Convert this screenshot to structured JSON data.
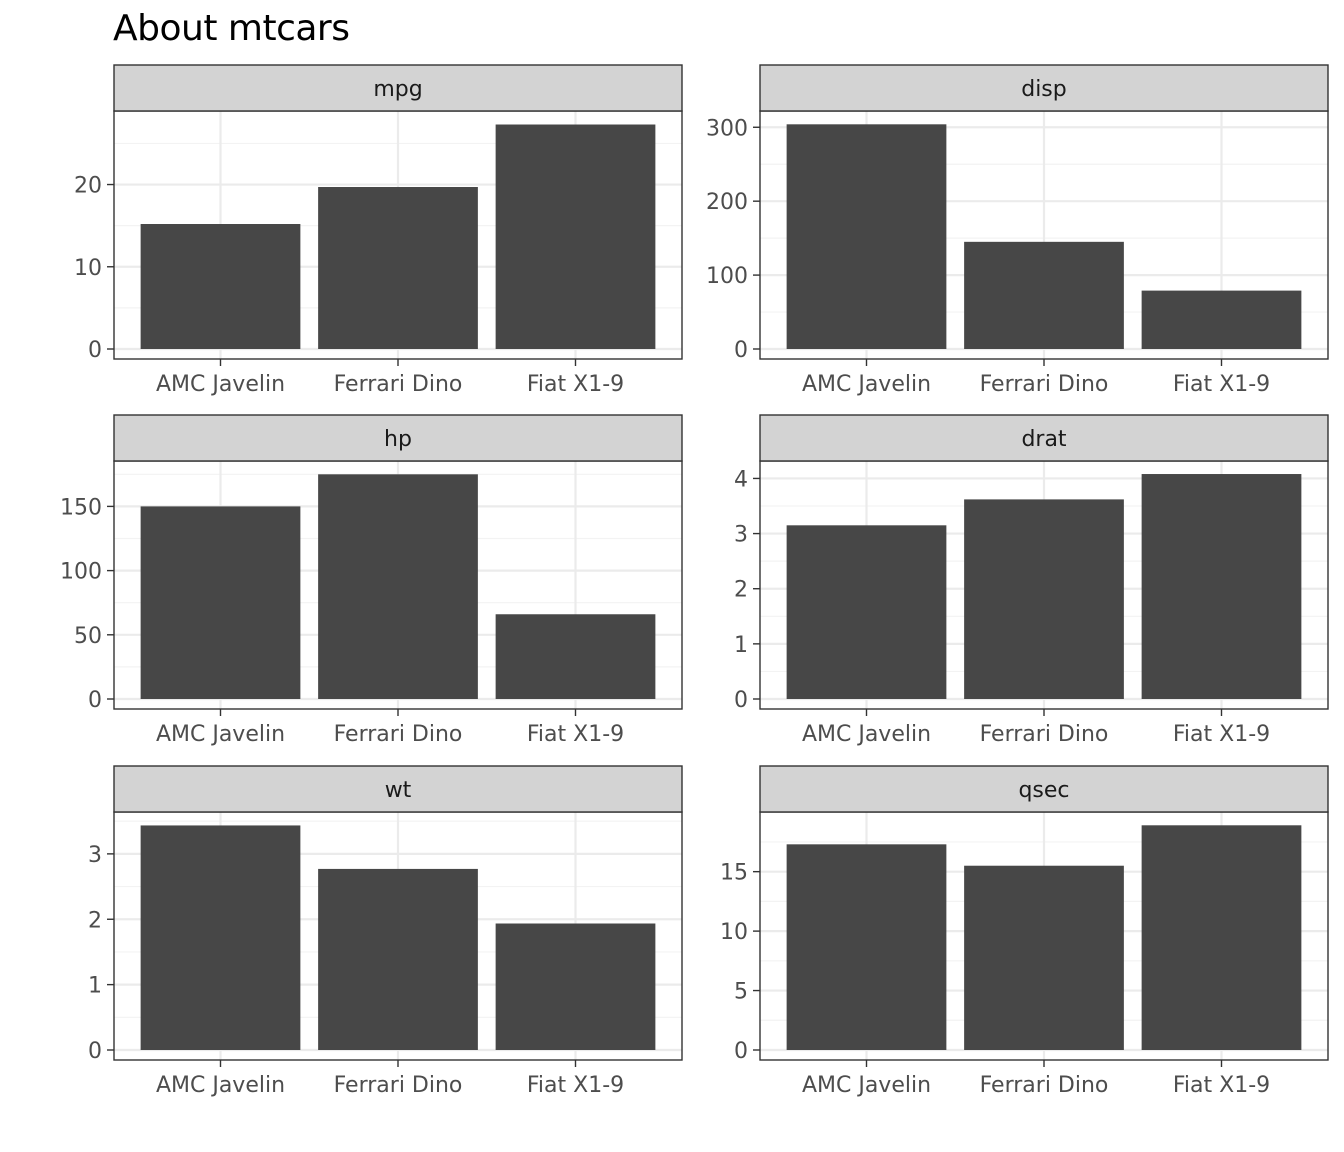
{
  "title": "About mtcars",
  "colors": {
    "bar": "#474747",
    "strip_fill": "#d3d3d3",
    "grid_major": "#ebebeb",
    "grid_minor": "#f3f3f3",
    "panel_border": "#333333",
    "tick_text": "#4d4d4d"
  },
  "chart_data": [
    {
      "type": "bar",
      "facet": "mpg",
      "categories": [
        "AMC Javelin",
        "Ferrari Dino",
        "Fiat X1-9"
      ],
      "values": [
        15.2,
        19.7,
        27.3
      ],
      "ylim": [
        0,
        28.7
      ],
      "yticks": [
        0,
        10,
        20
      ],
      "ytick_labels": [
        "0",
        "10",
        "20"
      ],
      "xlabel": "",
      "ylabel": ""
    },
    {
      "type": "bar",
      "facet": "disp",
      "categories": [
        "AMC Javelin",
        "Ferrari Dino",
        "Fiat X1-9"
      ],
      "values": [
        304,
        145,
        79
      ],
      "ylim": [
        0,
        319.3
      ],
      "yticks": [
        0,
        100,
        200,
        300
      ],
      "ytick_labels": [
        "0",
        "100",
        "200",
        "300"
      ],
      "xlabel": "",
      "ylabel": ""
    },
    {
      "type": "bar",
      "facet": "hp",
      "categories": [
        "AMC Javelin",
        "Ferrari Dino",
        "Fiat X1-9"
      ],
      "values": [
        150,
        175,
        66
      ],
      "ylim": [
        0,
        183.8
      ],
      "yticks": [
        0,
        50,
        100,
        150
      ],
      "ytick_labels": [
        "0",
        "50",
        "100",
        "150"
      ],
      "xlabel": "",
      "ylabel": ""
    },
    {
      "type": "bar",
      "facet": "drat",
      "categories": [
        "AMC Javelin",
        "Ferrari Dino",
        "Fiat X1-9"
      ],
      "values": [
        3.15,
        3.62,
        4.08
      ],
      "ylim": [
        0,
        4.28
      ],
      "yticks": [
        0,
        1,
        2,
        3,
        4
      ],
      "ytick_labels": [
        "0",
        "1",
        "2",
        "3",
        "4"
      ],
      "xlabel": "",
      "ylabel": ""
    },
    {
      "type": "bar",
      "facet": "wt",
      "categories": [
        "AMC Javelin",
        "Ferrari Dino",
        "Fiat X1-9"
      ],
      "values": [
        3.435,
        2.77,
        1.935
      ],
      "ylim": [
        0,
        3.61
      ],
      "yticks": [
        0,
        1,
        2,
        3
      ],
      "ytick_labels": [
        "0",
        "1",
        "2",
        "3"
      ],
      "xlabel": "",
      "ylabel": ""
    },
    {
      "type": "bar",
      "facet": "qsec",
      "categories": [
        "AMC Javelin",
        "Ferrari Dino",
        "Fiat X1-9"
      ],
      "values": [
        17.3,
        15.5,
        18.9
      ],
      "ylim": [
        0,
        19.85
      ],
      "yticks": [
        0,
        5,
        10,
        15
      ],
      "ytick_labels": [
        "0",
        "5",
        "10",
        "15"
      ],
      "xlabel": "",
      "ylabel": ""
    }
  ]
}
